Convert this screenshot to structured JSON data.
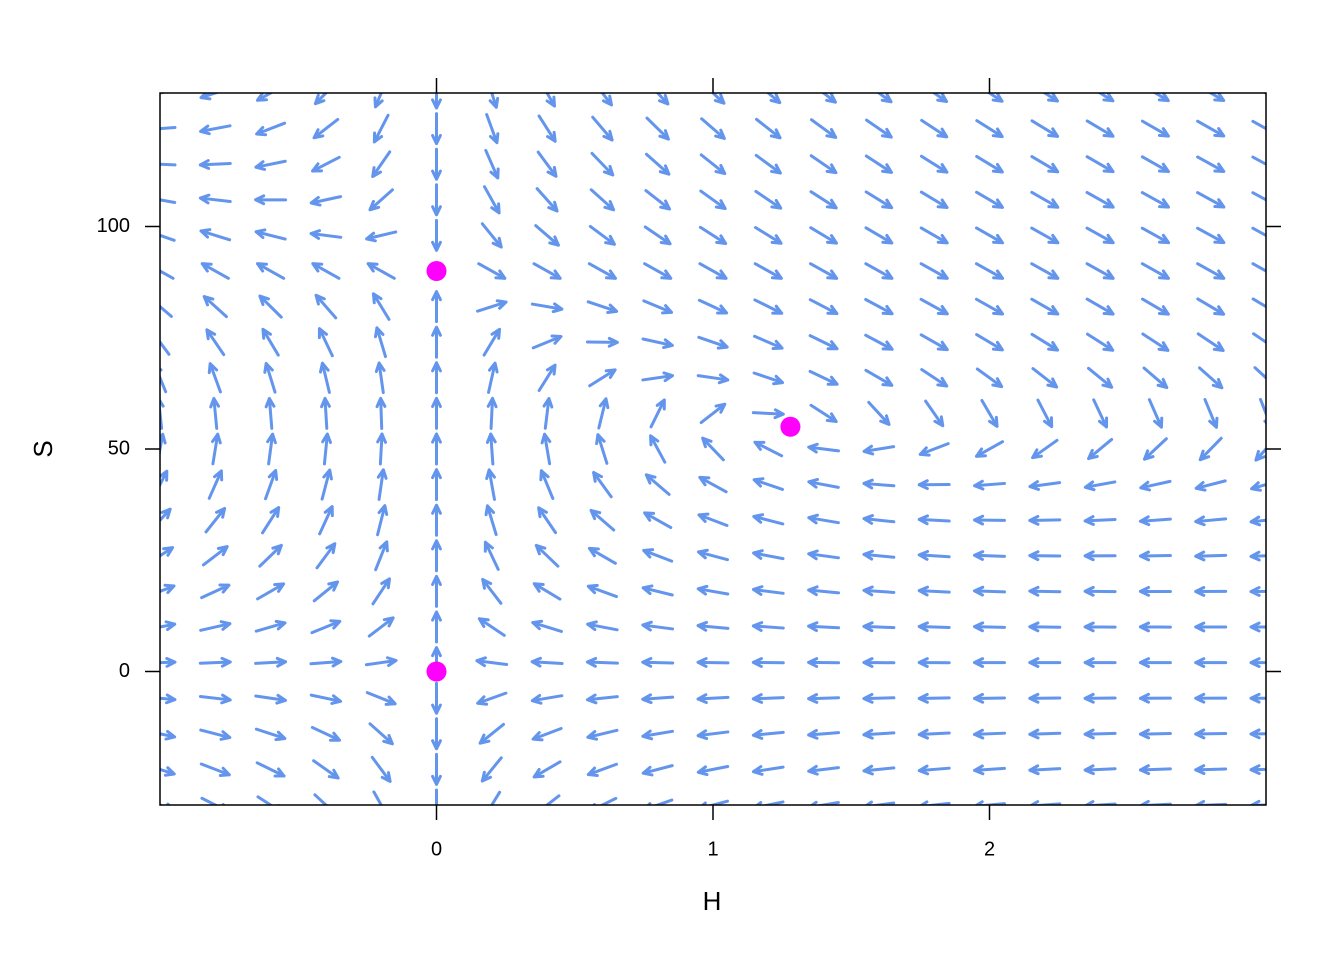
{
  "chart_data": {
    "type": "quiver",
    "xlabel": "H",
    "ylabel": "S",
    "xlim": [
      -1,
      3
    ],
    "ylim": [
      -30,
      130
    ],
    "xticks": [
      0,
      1,
      2
    ],
    "yticks": [
      0,
      50,
      100
    ],
    "arrow_color": "#6495ed",
    "field": {
      "r": 0.9,
      "K": 90,
      "c": 0.27,
      "b": 0.02,
      "d": 1.1
    },
    "points": {
      "color": "#ff00ff",
      "x": [
        0,
        0,
        1.28
      ],
      "y": [
        0,
        90,
        55
      ]
    }
  }
}
